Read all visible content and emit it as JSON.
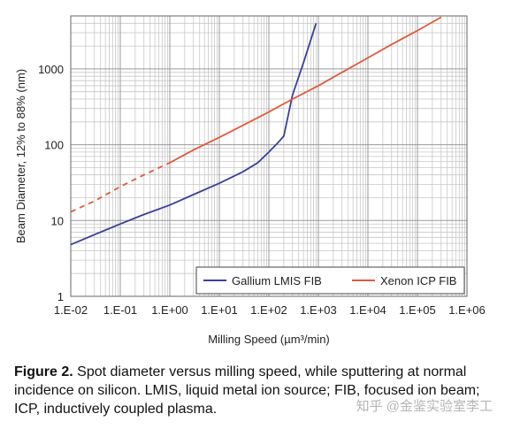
{
  "chart_data": {
    "type": "line",
    "x_scale": "log",
    "y_scale": "log",
    "xlabel": "Milling Speed (µm³/min)",
    "ylabel": "Beam Diameter, 12% to 88% (nm)",
    "xlim": [
      0.01,
      1000000
    ],
    "ylim": [
      1,
      5000
    ],
    "x_ticks": [
      "1.E-02",
      "1.E-01",
      "1.E+00",
      "1.E+01",
      "1.E+02",
      "1.E+03",
      "1.E+04",
      "1.E+05",
      "1.E+06"
    ],
    "y_ticks": [
      "1",
      "10",
      "100",
      "1000"
    ],
    "grid": true,
    "legend_position": "bottom-right",
    "series": [
      {
        "name": "Gallium LMIS FIB",
        "color": "#3a3f9a",
        "style": "solid",
        "x": [
          0.01,
          0.03,
          0.1,
          0.3,
          1,
          3,
          10,
          30,
          60,
          100,
          150,
          200,
          300,
          500,
          900
        ],
        "y": [
          4.8,
          6.5,
          9,
          12,
          16,
          22,
          31,
          44,
          58,
          80,
          105,
          130,
          450,
          1200,
          4000
        ]
      },
      {
        "name": "Xenon ICP FIB",
        "color": "#e05a3c",
        "style": "solid",
        "dashed_below_x": 1,
        "x": [
          0.01,
          0.03,
          0.1,
          0.3,
          1,
          3,
          10,
          30,
          100,
          300,
          1000,
          3000,
          10000,
          30000,
          100000,
          300000
        ],
        "y": [
          13,
          18,
          28,
          40,
          58,
          85,
          125,
          180,
          270,
          400,
          600,
          900,
          1400,
          2100,
          3200,
          4800
        ]
      }
    ]
  },
  "caption": {
    "label": "Figure 2.",
    "text": "Spot diameter versus milling speed, while sputtering at normal incidence on silicon. LMIS, liquid metal ion source; FIB, focused ion beam; ICP, inductively coupled plasma."
  },
  "watermark": "知乎 @金鉴实验室李工"
}
